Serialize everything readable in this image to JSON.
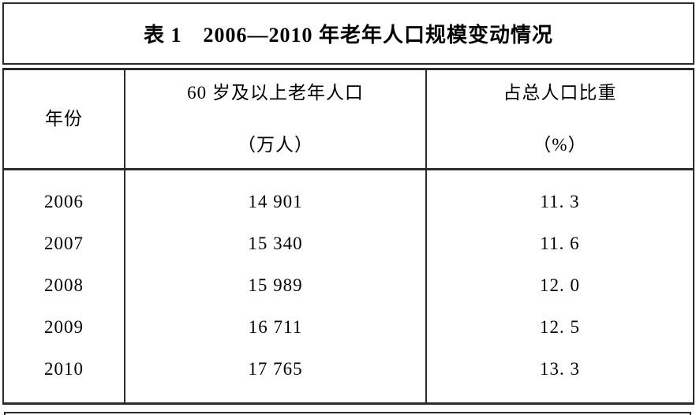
{
  "title_box": {
    "title": "表 1　2006—2010 年老年人口规模变动情况"
  },
  "table": {
    "header": {
      "year": "年份",
      "population_line1": "60 岁及以上老年人口",
      "population_line2": "（万人）",
      "share_line1": "占总人口比重",
      "share_line2": "（%）"
    },
    "rows": [
      {
        "year": "2006",
        "population": "14 901",
        "share": "11. 3"
      },
      {
        "year": "2007",
        "population": "15 340",
        "share": "11. 6"
      },
      {
        "year": "2008",
        "population": "15 989",
        "share": "12. 0"
      },
      {
        "year": "2009",
        "population": "16 711",
        "share": "12. 5"
      },
      {
        "year": "2010",
        "population": "17 765",
        "share": "13. 3"
      }
    ]
  },
  "colors": {
    "border": "#2b2b2b",
    "text": "#000000",
    "background": "#ffffff"
  }
}
